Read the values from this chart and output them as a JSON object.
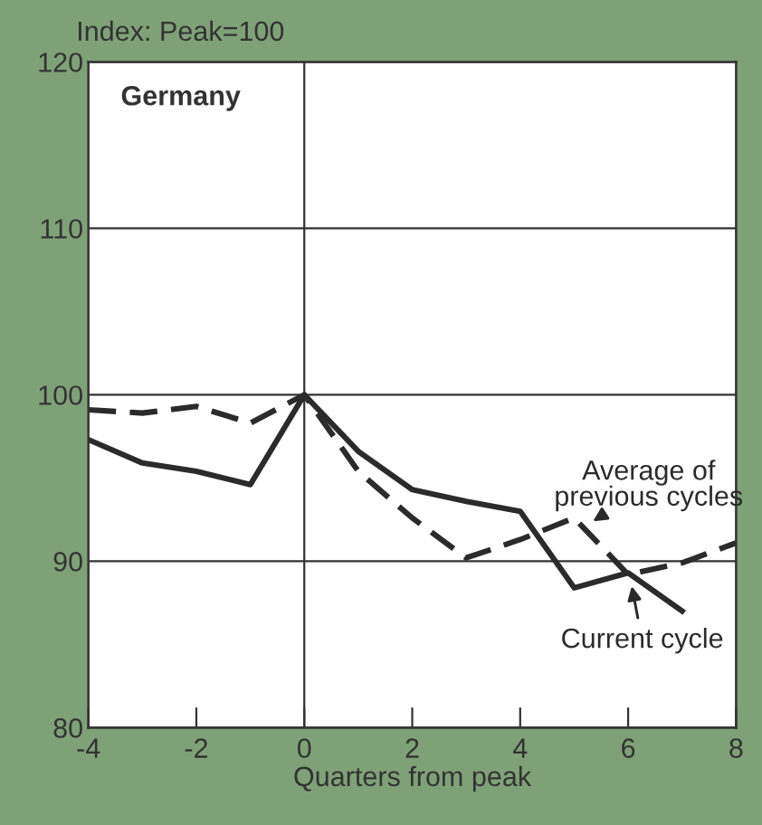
{
  "chart_data": {
    "type": "line",
    "title": "Germany",
    "ylabel": "Index: Peak=100",
    "xlabel": "Quarters from peak",
    "x": [
      -4,
      -3,
      -2,
      -1,
      0,
      1,
      2,
      3,
      4,
      5,
      6,
      7,
      8
    ],
    "series": [
      {
        "name": "Current cycle",
        "color": "#2b2b2b",
        "line_style": "solid",
        "values": [
          97.3,
          95.9,
          95.4,
          94.6,
          100,
          96.6,
          94.3,
          93.6,
          93.0,
          88.4,
          89.3,
          87.0,
          null
        ]
      },
      {
        "name": "Average of previous cycles",
        "color": "#2b2b2b",
        "line_style": "dashed",
        "values": [
          99.1,
          98.9,
          99.3,
          98.3,
          100,
          95.4,
          92.6,
          90.2,
          91.3,
          92.6,
          89.2,
          89.9,
          91.1
        ]
      }
    ],
    "xlim": [
      -4,
      8
    ],
    "ylim": [
      80,
      120
    ],
    "xticks": [
      -4,
      -2,
      0,
      2,
      4,
      6,
      8
    ],
    "yticks": [
      80,
      90,
      100,
      110,
      120
    ],
    "grid": "y",
    "ref_lines": [
      {
        "axis": "x",
        "value": 0
      }
    ],
    "marker": "none"
  }
}
